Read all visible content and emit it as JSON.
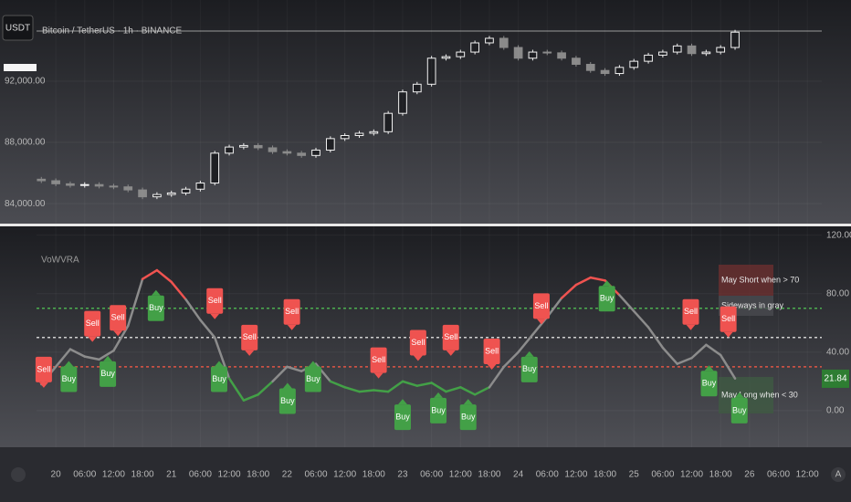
{
  "ui": {
    "currency": "USDT",
    "auto": "A"
  },
  "chart_data": [
    {
      "type": "candlestick",
      "title": "Bitcoin / TetherUS · 1h · BINANCE",
      "x": [
        -3,
        0,
        3,
        6,
        9,
        12,
        15,
        18,
        21,
        24,
        27,
        30,
        33,
        36,
        39,
        42,
        45,
        48,
        51,
        54,
        57,
        60,
        63,
        66,
        69,
        72,
        75,
        78,
        81,
        84,
        87,
        90,
        93,
        96,
        99,
        102,
        105,
        108,
        111,
        114,
        117,
        120,
        123,
        126,
        129,
        132,
        135,
        138,
        141
      ],
      "open": [
        85600,
        85500,
        85300,
        85200,
        85250,
        85150,
        85100,
        84900,
        84450,
        84600,
        84700,
        84950,
        85350,
        87300,
        87700,
        87800,
        87650,
        87400,
        87300,
        87150,
        87500,
        88250,
        88450,
        88600,
        88700,
        89900,
        91300,
        91800,
        93500,
        93600,
        93900,
        94500,
        94800,
        94200,
        93500,
        93900,
        93850,
        93500,
        93100,
        92700,
        92500,
        92900,
        93300,
        93700,
        93900,
        94300,
        93800,
        93900,
        94200
      ],
      "high": [
        85750,
        85650,
        85450,
        85400,
        85400,
        85300,
        85250,
        85050,
        84750,
        84850,
        85100,
        85500,
        87450,
        87850,
        87950,
        87950,
        87800,
        87550,
        87450,
        87650,
        88400,
        88600,
        88750,
        88850,
        90050,
        91450,
        91950,
        93650,
        93750,
        94050,
        94650,
        94950,
        94950,
        94350,
        94050,
        94050,
        94000,
        93650,
        93250,
        92850,
        93050,
        93450,
        93850,
        94050,
        94450,
        94450,
        94050,
        94350,
        95350
      ],
      "low": [
        85350,
        85150,
        85050,
        85050,
        85000,
        84950,
        84750,
        84300,
        84300,
        84450,
        84550,
        84800,
        85200,
        87150,
        87550,
        87500,
        87250,
        87150,
        87000,
        87000,
        87350,
        88100,
        88300,
        88450,
        88550,
        89750,
        91150,
        91650,
        93350,
        93450,
        93750,
        94350,
        94050,
        93350,
        93350,
        93700,
        93350,
        92950,
        92550,
        92350,
        92350,
        92750,
        93150,
        93550,
        93750,
        93650,
        93650,
        93750,
        94050
      ],
      "close": [
        85500,
        85300,
        85200,
        85250,
        85150,
        85100,
        84900,
        84450,
        84600,
        84700,
        84950,
        85350,
        87300,
        87700,
        87800,
        87650,
        87400,
        87300,
        87150,
        87500,
        88250,
        88450,
        88600,
        88700,
        89900,
        91300,
        91800,
        93500,
        93600,
        93900,
        94500,
        94800,
        94200,
        93500,
        93900,
        93850,
        93500,
        93100,
        92700,
        92500,
        92900,
        93300,
        93700,
        93900,
        94300,
        93800,
        93900,
        94200,
        95200
      ],
      "up_color": "#f2f2f2",
      "down_color": "#8a8a8a",
      "xlim": [
        -4,
        159
      ],
      "ylim": [
        82700,
        97300
      ],
      "yticks": [
        {
          "value": 84000,
          "label": "84,000.00"
        },
        {
          "value": 88000,
          "label": "88,000.00"
        },
        {
          "value": 92000,
          "label": "92,000.00"
        }
      ]
    },
    {
      "type": "line",
      "title": "VoWVRA",
      "x": [
        -3,
        0,
        3,
        6,
        9,
        12,
        15,
        18,
        21,
        24,
        27,
        30,
        33,
        36,
        39,
        42,
        45,
        48,
        51,
        54,
        57,
        60,
        63,
        66,
        69,
        72,
        75,
        78,
        81,
        84,
        87,
        90,
        93,
        96,
        99,
        102,
        105,
        108,
        111,
        114,
        117,
        120,
        123,
        126,
        129,
        132,
        135,
        138,
        141
      ],
      "values": [
        18,
        30,
        42,
        37,
        35,
        41,
        58,
        90,
        96,
        88,
        76,
        62,
        50,
        22,
        7,
        11,
        20,
        30,
        27,
        32,
        20,
        16,
        13,
        14,
        13,
        20,
        17,
        19,
        13,
        16,
        11,
        16,
        30,
        40,
        52,
        64,
        77,
        86,
        91,
        89,
        79,
        68,
        57,
        43,
        32,
        36,
        45,
        38,
        22
      ],
      "colors": {
        "overbought": "#ef5350",
        "oversold": "#43a047",
        "neutral": "#8c8c8c"
      },
      "levels": [
        {
          "value": 70,
          "color": "#4caf50"
        },
        {
          "value": 50,
          "color": "#d0d0d0"
        },
        {
          "value": 30,
          "color": "#e05545"
        }
      ],
      "last_value": 21.84,
      "signal_colors": {
        "Buy": "#43a047",
        "Sell": "#ef5350"
      },
      "signals": [
        {
          "label": "Sell",
          "x": -2.5,
          "y": 15.6
        },
        {
          "label": "Buy",
          "x": 2.7,
          "y": 34
        },
        {
          "label": "Sell",
          "x": 7.6,
          "y": 47
        },
        {
          "label": "Buy",
          "x": 10.8,
          "y": 37.5
        },
        {
          "label": "Sell",
          "x": 12.9,
          "y": 51
        },
        {
          "label": "Buy",
          "x": 20.8,
          "y": 82.5
        },
        {
          "label": "Sell",
          "x": 33,
          "y": 62.5
        },
        {
          "label": "Buy",
          "x": 33.9,
          "y": 34
        },
        {
          "label": "Sell",
          "x": 40.2,
          "y": 37.5
        },
        {
          "label": "Buy",
          "x": 48.1,
          "y": 19
        },
        {
          "label": "Sell",
          "x": 49,
          "y": 55
        },
        {
          "label": "Buy",
          "x": 53.4,
          "y": 34
        },
        {
          "label": "Sell",
          "x": 67,
          "y": 22
        },
        {
          "label": "Buy",
          "x": 72,
          "y": 8
        },
        {
          "label": "Sell",
          "x": 75.2,
          "y": 34
        },
        {
          "label": "Buy",
          "x": 79.4,
          "y": 12.5
        },
        {
          "label": "Sell",
          "x": 82,
          "y": 37.5
        },
        {
          "label": "Buy",
          "x": 85.6,
          "y": 8
        },
        {
          "label": "Sell",
          "x": 90.5,
          "y": 28
        },
        {
          "label": "Buy",
          "x": 98.3,
          "y": 40.6
        },
        {
          "label": "Sell",
          "x": 100.8,
          "y": 59
        },
        {
          "label": "Buy",
          "x": 114.4,
          "y": 89
        },
        {
          "label": "Sell",
          "x": 131.8,
          "y": 55
        },
        {
          "label": "Buy",
          "x": 135.6,
          "y": 31
        },
        {
          "label": "Sell",
          "x": 139.6,
          "y": 50
        },
        {
          "label": "Buy",
          "x": 141.9,
          "y": 12.5
        }
      ],
      "annotations": [
        "May Short when > 70",
        "Sideways in gray",
        "May Long when < 30"
      ],
      "xlim": [
        -4,
        159
      ],
      "ylim": [
        -25,
        126
      ],
      "yticks": [
        {
          "value": 0,
          "label": "0.00"
        },
        {
          "value": 40,
          "label": "40.00"
        },
        {
          "value": 80,
          "label": "80.00"
        },
        {
          "value": 120,
          "label": "120.00"
        }
      ],
      "xticks": [
        {
          "value": 0,
          "label": "20"
        },
        {
          "value": 6,
          "label": "06:00"
        },
        {
          "value": 12,
          "label": "12:00"
        },
        {
          "value": 18,
          "label": "18:00"
        },
        {
          "value": 24,
          "label": "21"
        },
        {
          "value": 30,
          "label": "06:00"
        },
        {
          "value": 36,
          "label": "12:00"
        },
        {
          "value": 42,
          "label": "18:00"
        },
        {
          "value": 48,
          "label": "22"
        },
        {
          "value": 54,
          "label": "06:00"
        },
        {
          "value": 60,
          "label": "12:00"
        },
        {
          "value": 66,
          "label": "18:00"
        },
        {
          "value": 72,
          "label": "23"
        },
        {
          "value": 78,
          "label": "06:00"
        },
        {
          "value": 84,
          "label": "12:00"
        },
        {
          "value": 90,
          "label": "18:00"
        },
        {
          "value": 96,
          "label": "24"
        },
        {
          "value": 102,
          "label": "06:00"
        },
        {
          "value": 108,
          "label": "12:00"
        },
        {
          "value": 114,
          "label": "18:00"
        },
        {
          "value": 120,
          "label": "25"
        },
        {
          "value": 126,
          "label": "06:00"
        },
        {
          "value": 132,
          "label": "12:00"
        },
        {
          "value": 138,
          "label": "18:00"
        },
        {
          "value": 144,
          "label": "26"
        },
        {
          "value": 150,
          "label": "06:00"
        },
        {
          "value": 156,
          "label": "12:00"
        }
      ],
      "grid": true
    }
  ]
}
